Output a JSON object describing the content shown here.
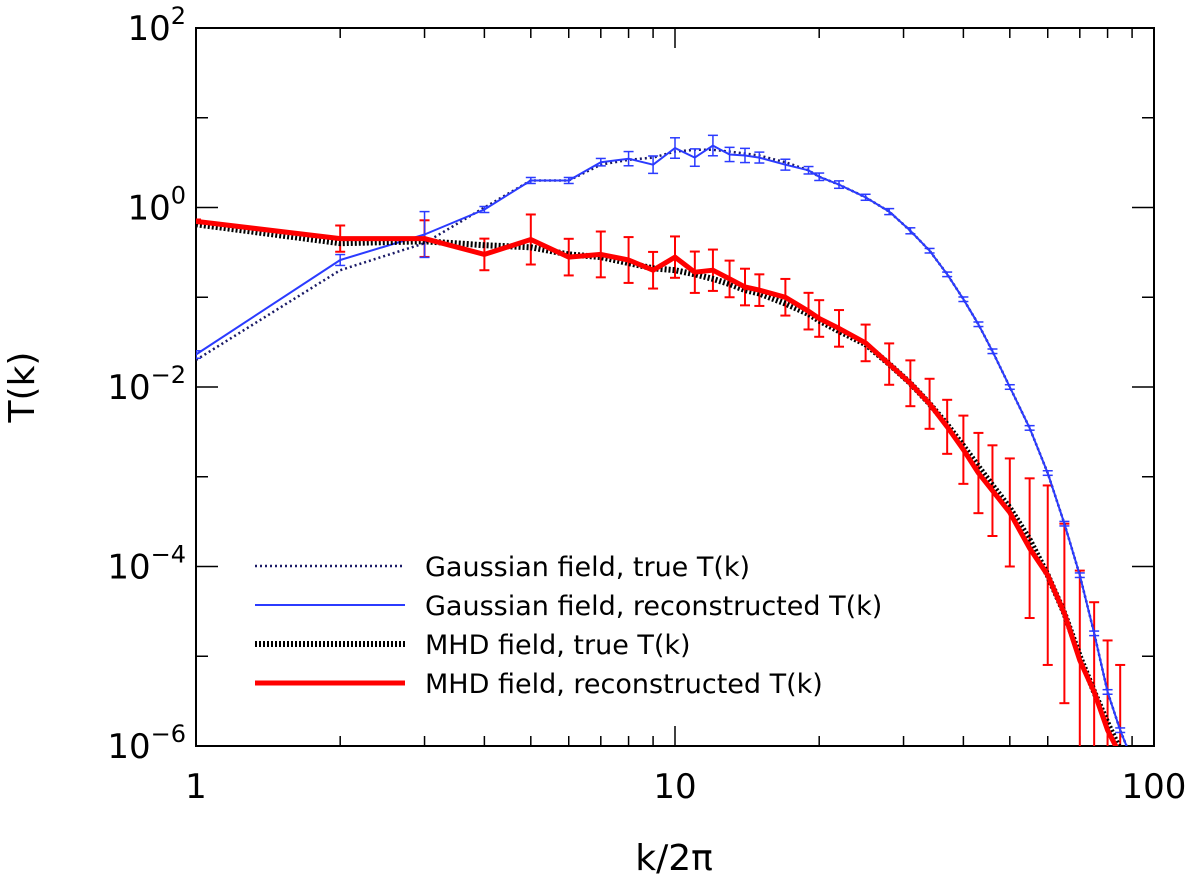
{
  "chart_data": {
    "type": "line",
    "xscale": "log",
    "yscale": "log",
    "xlim": [
      1,
      100
    ],
    "ylim": [
      1e-06,
      100
    ],
    "xlabel": "k/2π",
    "ylabel": "T(k)",
    "grid": false,
    "legend_position": "bottom-left",
    "x_ticks": [
      {
        "value": 1,
        "label": "1"
      },
      {
        "value": 10,
        "label": "10"
      },
      {
        "value": 100,
        "label": "100"
      }
    ],
    "y_ticks": [
      {
        "value": 1e-06,
        "base": "10",
        "exp": "−6"
      },
      {
        "value": 0.0001,
        "base": "10",
        "exp": "−4"
      },
      {
        "value": 0.01,
        "base": "10",
        "exp": "−2"
      },
      {
        "value": 1,
        "base": "10",
        "exp": "0"
      },
      {
        "value": 100,
        "base": "10",
        "exp": "2"
      }
    ],
    "series": [
      {
        "key": "gauss-true",
        "name": "Gaussian field, true T(k)",
        "color": "#1a1a66",
        "style": "dotted",
        "x": [
          1,
          2,
          3,
          4,
          5,
          6,
          7,
          8,
          9,
          10,
          11,
          12,
          13,
          14,
          15,
          17,
          19,
          20,
          22,
          25,
          28,
          31,
          34,
          37,
          40,
          43,
          46,
          50,
          55,
          60,
          65,
          70,
          75,
          80,
          85,
          90
        ],
        "y": [
          0.02,
          0.2,
          0.4,
          1.0,
          2.0,
          2.0,
          3.0,
          3.4,
          3.6,
          4.2,
          4.4,
          4.4,
          4.2,
          4.0,
          3.8,
          3.2,
          2.6,
          2.2,
          1.8,
          1.3,
          0.9,
          0.55,
          0.33,
          0.18,
          0.095,
          0.05,
          0.025,
          0.01,
          0.0035,
          0.0011,
          0.0003,
          8e-05,
          1.8e-05,
          4e-06,
          1.5e-06,
          7e-07
        ]
      },
      {
        "key": "gauss-rec",
        "name": "Gaussian field, reconstructed T(k)",
        "color": "#2b3bff",
        "style": "solid",
        "errorbars": true,
        "x": [
          1,
          2,
          3,
          4,
          5,
          6,
          7,
          8,
          9,
          10,
          11,
          12,
          13,
          14,
          15,
          17,
          19,
          20,
          22,
          25,
          28,
          31,
          34,
          37,
          40,
          43,
          46,
          50,
          55,
          60,
          65,
          70,
          75,
          80,
          85,
          90
        ],
        "y": [
          0.023,
          0.26,
          0.5,
          0.95,
          2.0,
          2.0,
          3.2,
          3.5,
          3.0,
          4.6,
          3.6,
          4.9,
          3.9,
          3.8,
          3.6,
          3.0,
          2.6,
          2.2,
          1.8,
          1.3,
          0.9,
          0.55,
          0.33,
          0.18,
          0.095,
          0.05,
          0.025,
          0.01,
          0.0035,
          0.0011,
          0.0003,
          8e-05,
          1.8e-05,
          4e-06,
          1.5e-06,
          7e-07
        ],
        "error_factor": [
          1.1,
          1.15,
          1.8,
          1.08,
          1.08,
          1.08,
          1.1,
          1.2,
          1.25,
          1.3,
          1.25,
          1.3,
          1.2,
          1.2,
          1.15,
          1.15,
          1.1,
          1.1,
          1.1,
          1.08,
          1.08,
          1.08,
          1.06,
          1.06,
          1.06,
          1.06,
          1.06,
          1.06,
          1.06,
          1.06,
          1.06,
          1.06,
          1.06,
          1.06,
          1.06,
          1.06
        ]
      },
      {
        "key": "mhd-true",
        "name": "MHD field, true T(k)",
        "color": "#000000",
        "style": "thick-dotted",
        "x": [
          1,
          2,
          3,
          4,
          5,
          6,
          7,
          8,
          9,
          10,
          11,
          12,
          13,
          14,
          15,
          17,
          19,
          20,
          22,
          25,
          28,
          31,
          34,
          37,
          40,
          43,
          46,
          50,
          55,
          60,
          65,
          70,
          75,
          80,
          85
        ],
        "y": [
          0.65,
          0.4,
          0.42,
          0.38,
          0.36,
          0.3,
          0.28,
          0.24,
          0.21,
          0.2,
          0.18,
          0.16,
          0.14,
          0.12,
          0.11,
          0.085,
          0.065,
          0.055,
          0.042,
          0.03,
          0.018,
          0.011,
          0.0065,
          0.0038,
          0.0022,
          0.0013,
          0.0008,
          0.00045,
          0.0002,
          8e-05,
          3e-05,
          1e-05,
          4e-06,
          1.8e-06,
          9e-07
        ]
      },
      {
        "key": "mhd-rec",
        "name": "MHD field, reconstructed T(k)",
        "color": "#ff0000",
        "style": "thick-solid",
        "errorbars": true,
        "x": [
          1,
          2,
          3,
          4,
          5,
          6,
          7,
          8,
          9,
          10,
          11,
          12,
          13,
          14,
          15,
          17,
          19,
          20,
          22,
          25,
          28,
          31,
          34,
          37,
          40,
          43,
          46,
          50,
          55,
          60,
          65,
          70,
          75,
          80,
          85
        ],
        "y": [
          0.7,
          0.45,
          0.45,
          0.3,
          0.44,
          0.28,
          0.3,
          0.26,
          0.2,
          0.28,
          0.19,
          0.2,
          0.16,
          0.13,
          0.12,
          0.1,
          0.07,
          0.058,
          0.045,
          0.031,
          0.018,
          0.011,
          0.0065,
          0.0036,
          0.002,
          0.0011,
          0.0007,
          0.0004,
          0.00016,
          8e-05,
          3e-05,
          9e-06,
          4e-06,
          1.5e-06,
          8e-07
        ],
        "error_factor": [
          1.05,
          1.4,
          1.6,
          1.5,
          1.9,
          1.6,
          1.8,
          1.8,
          1.6,
          1.7,
          1.7,
          1.7,
          1.6,
          1.6,
          1.5,
          1.6,
          1.6,
          1.6,
          1.6,
          1.6,
          1.7,
          1.8,
          1.9,
          2.0,
          2.4,
          2.8,
          3.2,
          4.0,
          6.0,
          10.0,
          10.0,
          10.0,
          10.0,
          10.0,
          10.0
        ]
      }
    ]
  }
}
